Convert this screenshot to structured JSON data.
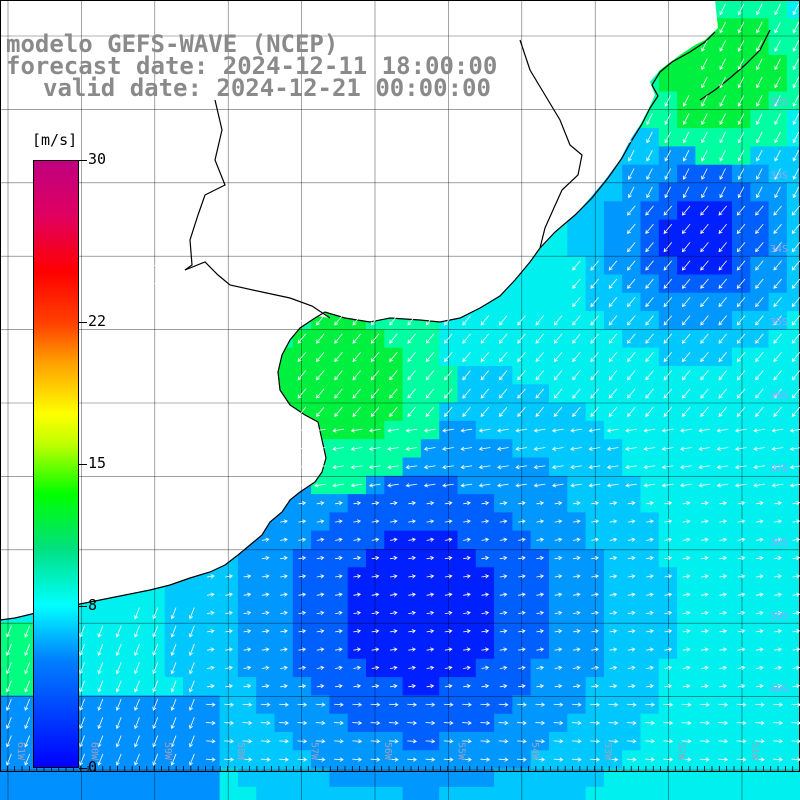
{
  "title": {
    "line1": "modelo GEFS-WAVE (NCEP)",
    "line2": "forecast date: 2024-12-11 18:00:00",
    "line3": "valid date: 2024-12-21 00:00:00"
  },
  "colorbar": {
    "units": "[m/s]",
    "ticks": [
      {
        "label": "30",
        "value": 30
      },
      {
        "label": "22",
        "value": 22
      },
      {
        "label": "15",
        "value": 15
      },
      {
        "label": "8",
        "value": 8
      },
      {
        "label": "0",
        "value": 0
      }
    ],
    "range": [
      0,
      30
    ]
  },
  "grid": {
    "lat_labels": [
      "32S",
      "33S",
      "34S",
      "35S",
      "36S",
      "37S",
      "38S",
      "39S",
      "40S"
    ],
    "lon_labels": [
      "61W",
      "60W",
      "59W",
      "58W",
      "57W",
      "56W",
      "55W",
      "54W",
      "53W",
      "52W",
      "51W"
    ]
  },
  "colors": {
    "land": "#ffffff",
    "coastline": "#000000",
    "gridline": "#000000",
    "title": "#8a8a8a",
    "arrows": "#ffffff"
  }
}
